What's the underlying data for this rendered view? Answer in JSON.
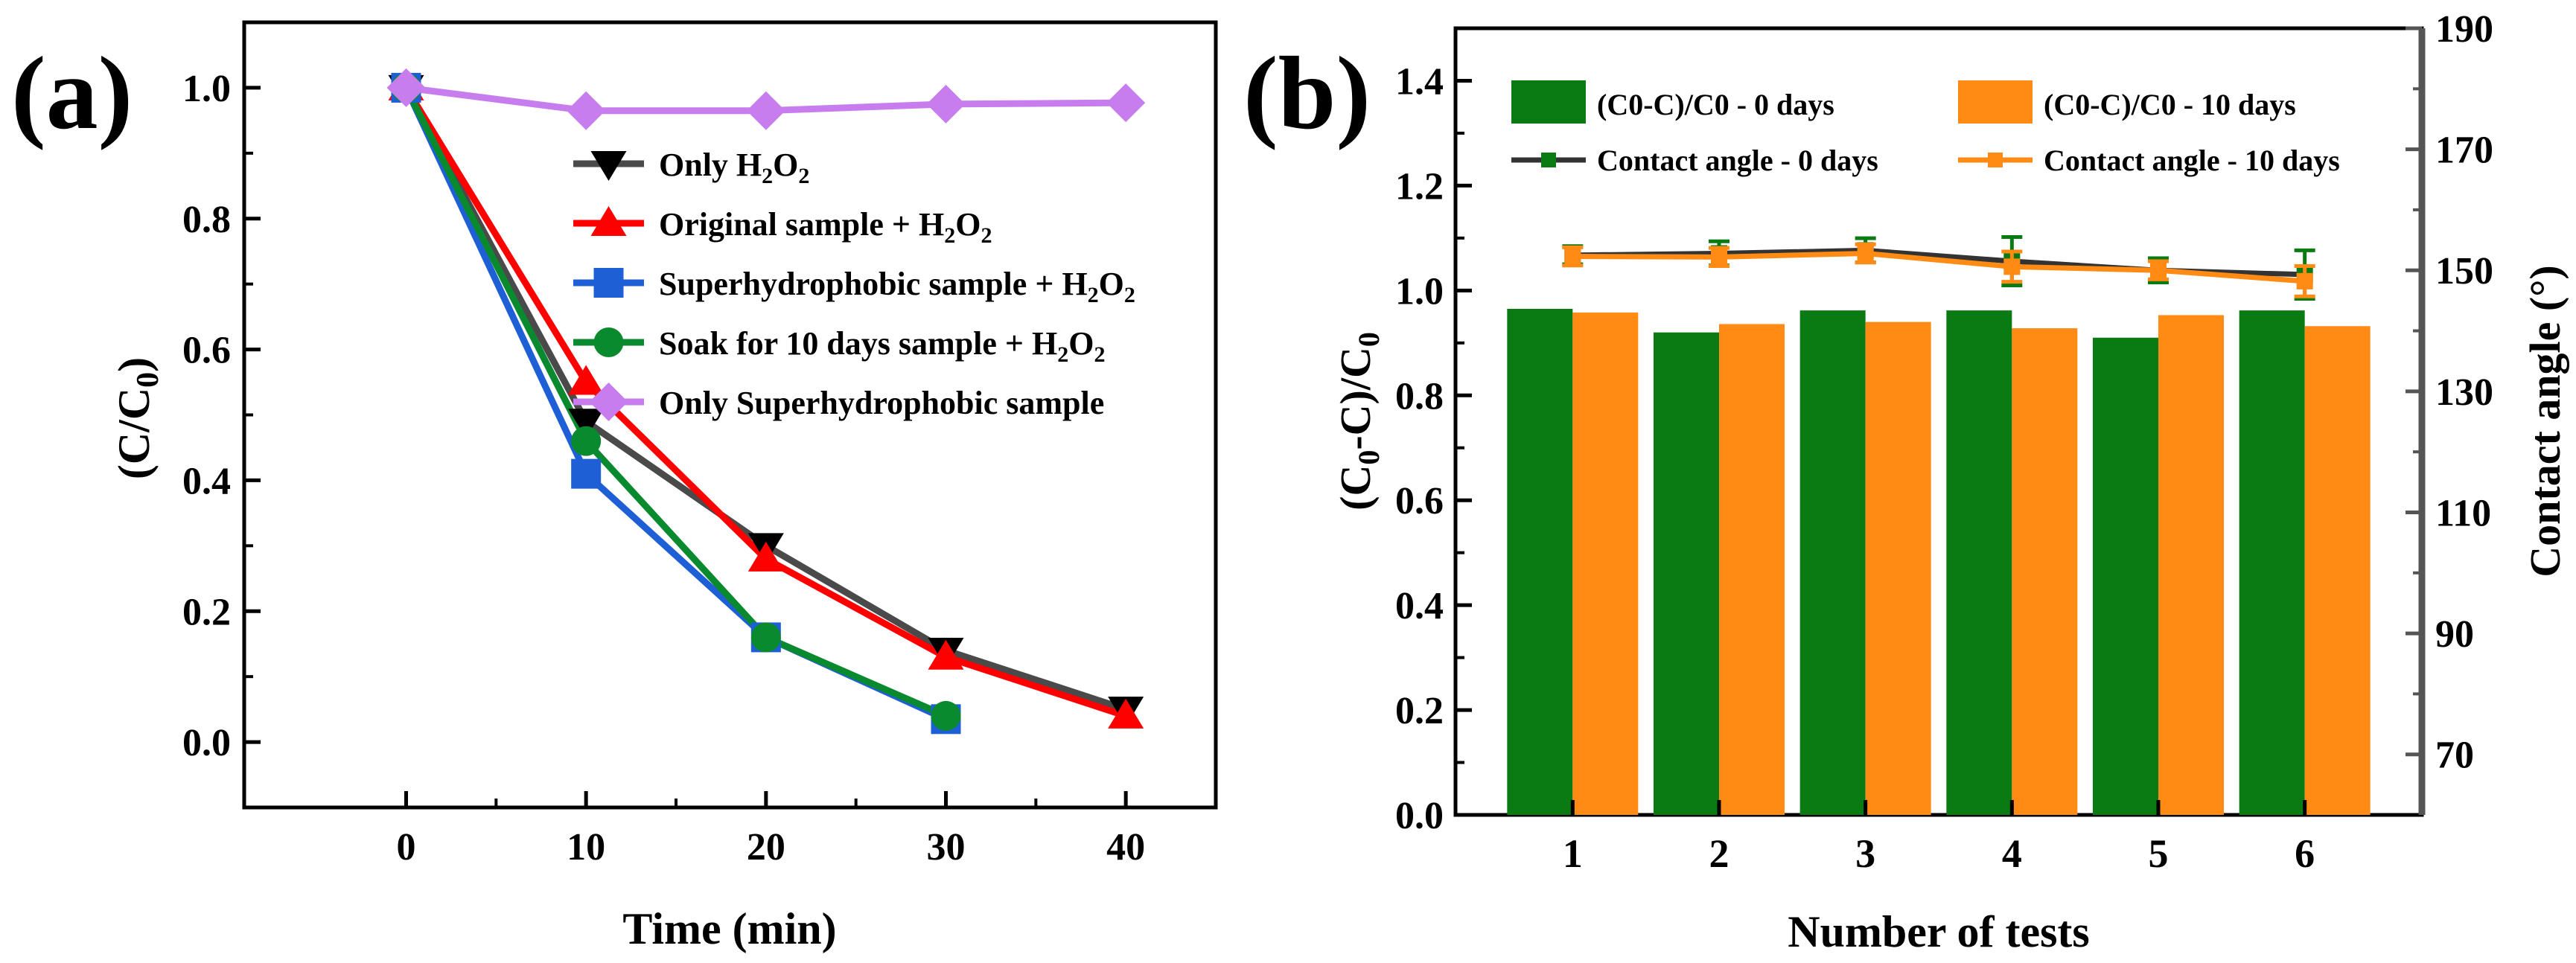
{
  "panels": {
    "a": {
      "label": "(a)"
    },
    "b": {
      "label": "(b)"
    }
  },
  "chart_data": [
    {
      "type": "line",
      "xlabel": "Time (min)",
      "ylabel": "(C/C0)",
      "xlim": [
        -9,
        45
      ],
      "ylim": [
        -0.1,
        1.1
      ],
      "xticks": [
        "0",
        "10",
        "20",
        "30",
        "40"
      ],
      "yticks": [
        "0.0",
        "0.2",
        "0.4",
        "0.6",
        "0.8",
        "1.0"
      ],
      "grid": false,
      "legend_position": "center-right",
      "series": [
        {
          "name": "Only H2O2",
          "legend": {
            "pre": "Only H",
            "sub1": "2",
            "mid": "O",
            "sub2": "2"
          },
          "marker": "triangle-down",
          "color": "#4a4a4a",
          "x": [
            0,
            10,
            20,
            30,
            40
          ],
          "y": [
            1.0,
            0.49,
            0.3,
            0.14,
            0.05
          ]
        },
        {
          "name": "Original sample + H2O2",
          "legend": {
            "pre": "Original sample + H",
            "sub1": "2",
            "mid": "O",
            "sub2": "2"
          },
          "marker": "triangle-up",
          "color": "#ff0000",
          "x": [
            0,
            10,
            20,
            30,
            40
          ],
          "y": [
            1.0,
            0.55,
            0.28,
            0.13,
            0.04
          ]
        },
        {
          "name": "Superhydrophobic sample + H2O2",
          "legend": {
            "pre": "Superhydrophobic sample + H",
            "sub1": "2",
            "mid": "O",
            "sub2": "2"
          },
          "marker": "square",
          "color": "#1f5fd6",
          "x": [
            0,
            10,
            20,
            30
          ],
          "y": [
            1.0,
            0.41,
            0.16,
            0.035
          ]
        },
        {
          "name": "Soak for 10 days sample + H2O2",
          "legend": {
            "pre": "Soak for 10 days sample + H",
            "sub1": "2",
            "mid": "O",
            "sub2": "2"
          },
          "marker": "circle",
          "color": "#0a8a2e",
          "x": [
            0,
            10,
            20,
            30
          ],
          "y": [
            1.0,
            0.46,
            0.16,
            0.04
          ]
        },
        {
          "name": "Only Superhydrophobic sample",
          "legend": {
            "pre": "Only Superhydrophobic sample",
            "sub1": "",
            "mid": "",
            "sub2": ""
          },
          "marker": "diamond",
          "color": "#c77ded",
          "x": [
            0,
            10,
            20,
            30,
            40
          ],
          "y": [
            1.0,
            0.965,
            0.965,
            0.975,
            0.977
          ]
        }
      ]
    },
    {
      "type": "bar",
      "xlabel": "Number of tests",
      "ylabel": "(C0-C)/C0",
      "y2label": "Contact angle (°)",
      "categories": [
        "1",
        "2",
        "3",
        "4",
        "5",
        "6"
      ],
      "ylim": [
        0,
        1.5
      ],
      "y2lim": [
        60,
        190
      ],
      "yticks": [
        "0.0",
        "0.2",
        "0.4",
        "0.6",
        "0.8",
        "1.0",
        "1.2",
        "1.4"
      ],
      "y2ticks": [
        "70",
        "90",
        "110",
        "130",
        "150",
        "170",
        "190"
      ],
      "grid": false,
      "legend_position": "top",
      "bars": [
        {
          "name": "(C0-C)/C0 - 0 days",
          "color": "#0a7a12",
          "values": [
            0.965,
            0.92,
            0.962,
            0.962,
            0.91,
            0.962
          ]
        },
        {
          "name": "(C0-C)/C0 - 10 days",
          "color": "#ff8a14",
          "values": [
            0.958,
            0.936,
            0.94,
            0.928,
            0.953,
            0.932
          ]
        }
      ],
      "lines": [
        {
          "name": "Contact angle - 0 days",
          "axis": "right",
          "color": "#0a7a12",
          "values": [
            152.5,
            152.8,
            153.3,
            151.5,
            150.0,
            149.3
          ],
          "errors": [
            1.5,
            2.0,
            2.0,
            4.0,
            2.0,
            4.0
          ]
        },
        {
          "name": "Contact angle - 10 days",
          "axis": "right",
          "color": "#ff8a14",
          "values": [
            152.3,
            152.2,
            152.8,
            150.6,
            150.0,
            148.2
          ],
          "errors": [
            1.5,
            1.5,
            1.5,
            2.5,
            1.5,
            2.5
          ]
        }
      ]
    }
  ]
}
